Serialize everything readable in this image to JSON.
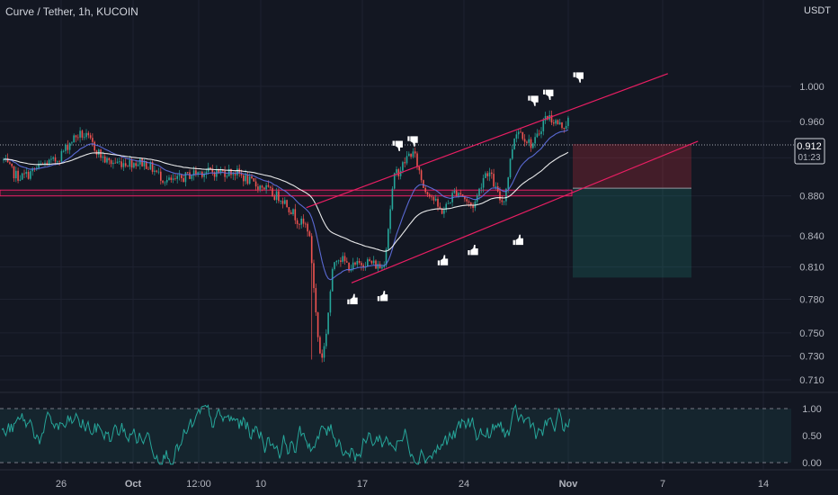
{
  "header": {
    "title": "Curve / Tether, 1h, KUCOIN",
    "unit": "USDT"
  },
  "price_tag": {
    "price": "0.912",
    "countdown": "01:23"
  },
  "colors": {
    "background": "#131722",
    "grid": "#1e2230",
    "up": "#26a69a",
    "down": "#ef5350",
    "channel": "#e91e63",
    "ema_fast": "#6272e6",
    "ema_slow": "#ffffff",
    "zone": "#e91e63",
    "oscillator": "#26a69a",
    "axis_text": "#b2b5be"
  },
  "icons": {
    "buy_marker": "thumbs-up-icon",
    "sell_marker": "thumbs-down-icon"
  },
  "chart_data": [
    {
      "type": "candlestick",
      "title": "Curve / Tether, 1h, KUCOIN",
      "ylabel": "USDT",
      "ylim": [
        0.7,
        1.02
      ],
      "y_scale": "log",
      "y_ticks": [
        "1.000",
        "0.960",
        "0.920",
        "0.880",
        "0.840",
        "0.810",
        "0.780",
        "0.750",
        "0.730",
        "0.710"
      ],
      "x_ticks": [
        "26",
        "Oct",
        "12:00",
        "10",
        "17",
        "24",
        "Nov",
        "7",
        "14"
      ],
      "current_price": 0.912,
      "price_path": [
        {
          "x": "Sep 21",
          "y": 0.93
        },
        {
          "x": "Sep 23",
          "y": 0.9
        },
        {
          "x": "Sep 25",
          "y": 0.915
        },
        {
          "x": "Sep 27",
          "y": 0.945
        },
        {
          "x": "Sep 29",
          "y": 0.915
        },
        {
          "x": "Oct 1",
          "y": 0.915
        },
        {
          "x": "Oct 3",
          "y": 0.895
        },
        {
          "x": "Oct 5",
          "y": 0.905
        },
        {
          "x": "Oct 7",
          "y": 0.905
        },
        {
          "x": "Oct 9",
          "y": 0.89
        },
        {
          "x": "Oct 10",
          "y": 0.88
        },
        {
          "x": "Oct 12",
          "y": 0.85
        },
        {
          "x": "Oct 13",
          "y": 0.73
        },
        {
          "x": "Oct 14",
          "y": 0.82
        },
        {
          "x": "Oct 15",
          "y": 0.81
        },
        {
          "x": "Oct 16",
          "y": 0.815
        },
        {
          "x": "Oct 17",
          "y": 0.81
        },
        {
          "x": "Oct 18",
          "y": 0.905
        },
        {
          "x": "Oct 19",
          "y": 0.925
        },
        {
          "x": "Oct 20",
          "y": 0.885
        },
        {
          "x": "Oct 21",
          "y": 0.865
        },
        {
          "x": "Oct 22",
          "y": 0.885
        },
        {
          "x": "Oct 23",
          "y": 0.87
        },
        {
          "x": "Oct 24",
          "y": 0.905
        },
        {
          "x": "Oct 25",
          "y": 0.875
        },
        {
          "x": "Oct 26",
          "y": 0.95
        },
        {
          "x": "Oct 27",
          "y": 0.935
        },
        {
          "x": "Oct 28",
          "y": 0.965
        },
        {
          "x": "Oct 29",
          "y": 0.955
        },
        {
          "x": "Oct 30",
          "y": 0.975
        },
        {
          "x": "Oct 31",
          "y": 0.93
        },
        {
          "x": "Nov 1",
          "y": 0.912
        }
      ],
      "channel": {
        "upper": [
          {
            "x": "Oct 12",
            "y": 0.868
          },
          {
            "x": "Nov 5",
            "y": 1.015
          }
        ],
        "lower": [
          {
            "x": "Oct 15",
            "y": 0.795
          },
          {
            "x": "Nov 7",
            "y": 0.938
          }
        ]
      },
      "horizontal_zone": [
        0.88,
        0.886
      ],
      "position": {
        "entry": 0.888,
        "stop": 0.935,
        "target": 0.8
      },
      "markers": [
        {
          "type": "buy",
          "x": "Oct 15",
          "y": 0.795
        },
        {
          "type": "buy",
          "x": "Oct 17",
          "y": 0.798
        },
        {
          "type": "buy",
          "x": "Oct 21",
          "y": 0.832
        },
        {
          "type": "buy",
          "x": "Oct 23",
          "y": 0.842
        },
        {
          "type": "buy",
          "x": "Oct 26",
          "y": 0.852
        },
        {
          "type": "sell",
          "x": "Oct 18",
          "y": 0.925
        },
        {
          "type": "sell",
          "x": "Oct 19",
          "y": 0.93
        },
        {
          "type": "sell",
          "x": "Oct 27",
          "y": 0.975
        },
        {
          "type": "sell",
          "x": "Oct 28",
          "y": 0.982
        },
        {
          "type": "sell",
          "x": "Oct 30",
          "y": 1.002
        }
      ]
    },
    {
      "type": "line",
      "title": "",
      "ylim": [
        0,
        1
      ],
      "y_ticks": [
        "1.00",
        "0.50",
        "0.00"
      ],
      "grid": false
    }
  ]
}
